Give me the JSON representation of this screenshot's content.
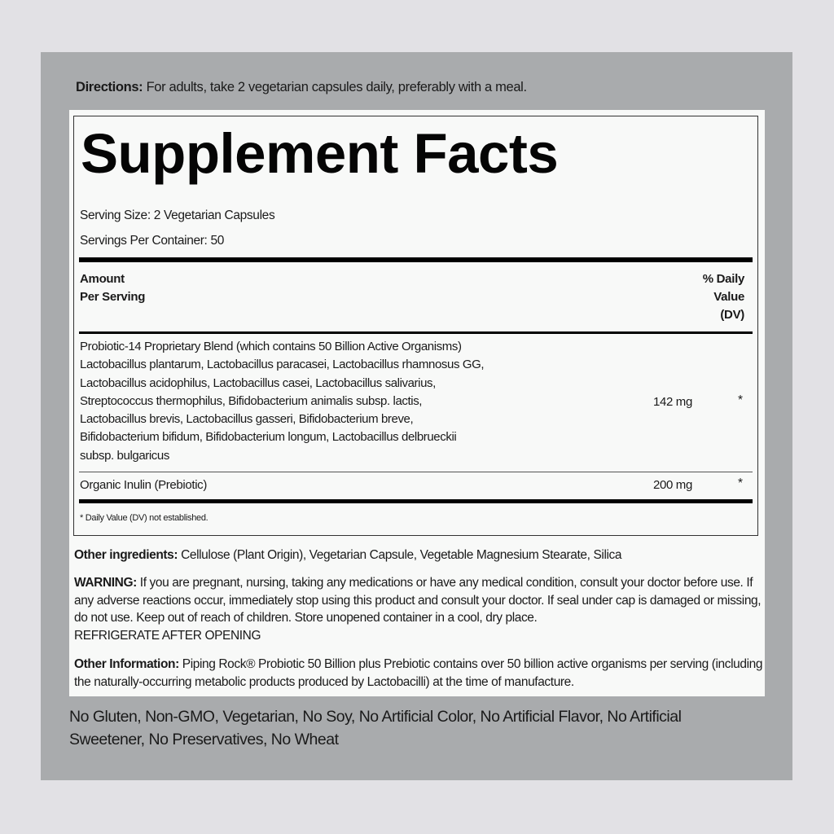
{
  "directions": {
    "label": "Directions:",
    "text": "For adults, take 2 vegetarian capsules daily, preferably with a meal."
  },
  "facts": {
    "title": "Supplement Facts",
    "serving_size": "Serving Size: 2 Vegetarian Capsules",
    "servings_per_container": "Servings Per Container: 50",
    "header": {
      "amount_line1": "Amount",
      "amount_line2": "Per Serving",
      "dv_line1": "% Daily",
      "dv_line2": "Value",
      "dv_line3": "(DV)"
    },
    "rows": [
      {
        "lines": [
          "Probiotic-14 Proprietary Blend (which contains 50 Billion Active Organisms)",
          "Lactobacillus plantarum, Lactobacillus paracasei, Lactobacillus rhamnosus GG,",
          "Lactobacillus acidophilus, Lactobacillus casei, Lactobacillus salivarius,",
          "Streptococcus thermophilus, Bifidobacterium animalis subsp. lactis,",
          "Lactobacillus brevis, Lactobacillus gasseri, Bifidobacterium breve,",
          "Bifidobacterium bifidum, Bifidobacterium longum, Lactobacillus delbrueckii",
          "subsp. bulgaricus"
        ],
        "amount": "142 mg",
        "dv": "*"
      },
      {
        "name": "Organic Inulin (Prebiotic)",
        "amount": "200 mg",
        "dv": "*"
      }
    ],
    "footnote": "* Daily Value (DV) not established."
  },
  "other_ingredients": {
    "label": "Other ingredients:",
    "text": "Cellulose (Plant Origin), Vegetarian Capsule, Vegetable Magnesium Stearate, Silica"
  },
  "warning": {
    "label": "WARNING:",
    "text": "If you are pregnant, nursing, taking any medications or have any medical condition, consult your doctor before use. If any adverse reactions occur, immediately stop using this product and consult your doctor. If seal under cap is damaged or missing, do not use. Keep out of reach of children. Store unopened container in a cool, dry place.",
    "text2": "REFRIGERATE AFTER OPENING"
  },
  "other_information": {
    "label": "Other Information:",
    "text": "Piping Rock® Probiotic 50 Billion plus Prebiotic contains over 50 billion active organisms per serving (including the naturally-occurring metabolic products produced by Lactobacilli) at the time of manufacture."
  },
  "claims": {
    "line1": "No Gluten, Non-GMO, Vegetarian, No Soy, No Artificial Color, No Artificial Flavor, No Artificial",
    "line2": "Sweetener, No Preservatives, No Wheat"
  }
}
